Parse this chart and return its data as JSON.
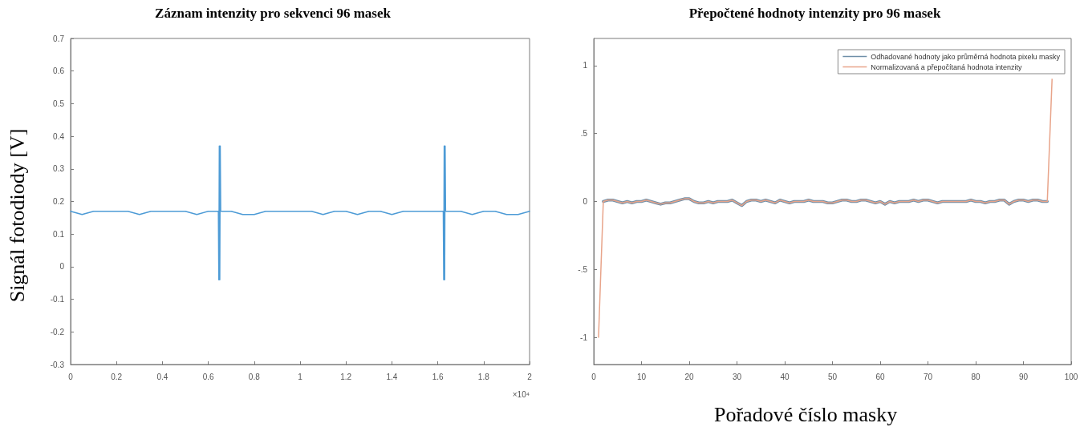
{
  "chart_data": [
    {
      "type": "line",
      "title": "Záznam intenzity pro sekvenci 96 masek",
      "ylabel": "Signál fotodiody [V]",
      "annotations": [
        "×10⁴"
      ],
      "xlim": [
        0,
        2
      ],
      "xticks": [
        0,
        0.2,
        0.4,
        0.6,
        0.8,
        1,
        1.2,
        1.4,
        1.6,
        1.8,
        2
      ],
      "ylim": [
        -0.3,
        0.7
      ],
      "yticks": [
        -0.3,
        -0.2,
        -0.1,
        0,
        0.1,
        0.2,
        0.3,
        0.4,
        0.5,
        0.6,
        0.7
      ],
      "grid": false,
      "legend": false,
      "marker": "none",
      "line_style": "solid",
      "series": [
        {
          "color": "#4d9bd6",
          "x": [
            0,
            0.05,
            0.1,
            0.15,
            0.2,
            0.25,
            0.3,
            0.35,
            0.4,
            0.45,
            0.5,
            0.55,
            0.6,
            0.644,
            0.646,
            0.648,
            0.65,
            0.652,
            0.654,
            0.7,
            0.75,
            0.8,
            0.85,
            0.9,
            0.95,
            1,
            1.05,
            1.1,
            1.15,
            1.2,
            1.25,
            1.3,
            1.35,
            1.4,
            1.45,
            1.5,
            1.55,
            1.6,
            1.624,
            1.626,
            1.628,
            1.63,
            1.632,
            1.634,
            1.68,
            1.7,
            1.75,
            1.8,
            1.85,
            1.9,
            1.95,
            2
          ],
          "values": [
            0.17,
            0.16,
            0.17,
            0.17,
            0.17,
            0.17,
            0.16,
            0.17,
            0.17,
            0.17,
            0.17,
            0.16,
            0.17,
            0.17,
            -0.04,
            0.37,
            -0.04,
            0.37,
            0.17,
            0.17,
            0.16,
            0.16,
            0.17,
            0.17,
            0.17,
            0.17,
            0.17,
            0.16,
            0.17,
            0.17,
            0.16,
            0.17,
            0.17,
            0.16,
            0.17,
            0.17,
            0.17,
            0.17,
            0.17,
            -0.04,
            0.37,
            -0.04,
            0.37,
            0.17,
            0.17,
            0.17,
            0.16,
            0.17,
            0.17,
            0.16,
            0.16,
            0.17
          ]
        }
      ]
    },
    {
      "type": "line",
      "title": "Přepočtené hodnoty intenzity pro 96 masek",
      "xlabel": "Pořadové číslo masky",
      "xlim": [
        0,
        100
      ],
      "xticks": [
        0,
        10,
        20,
        30,
        40,
        50,
        60,
        70,
        80,
        90,
        100
      ],
      "ylim": [
        -1.2,
        1.2
      ],
      "yticks": [
        {
          "value": -1,
          "label": "-1"
        },
        {
          "value": -0.5,
          "label": "-.5"
        },
        {
          "value": 0,
          "label": "0"
        },
        {
          "value": 0.5,
          "label": ".5"
        },
        {
          "value": 1,
          "label": "1"
        }
      ],
      "grid": false,
      "legend": "top right",
      "marker": "none",
      "line_style": "solid",
      "x": [
        1,
        2,
        3,
        4,
        5,
        6,
        7,
        8,
        9,
        10,
        11,
        12,
        13,
        14,
        15,
        16,
        17,
        18,
        19,
        20,
        21,
        22,
        23,
        24,
        25,
        26,
        27,
        28,
        29,
        30,
        31,
        32,
        33,
        34,
        35,
        36,
        37,
        38,
        39,
        40,
        41,
        42,
        43,
        44,
        45,
        46,
        47,
        48,
        49,
        50,
        51,
        52,
        53,
        54,
        55,
        56,
        57,
        58,
        59,
        60,
        61,
        62,
        63,
        64,
        65,
        66,
        67,
        68,
        69,
        70,
        71,
        72,
        73,
        74,
        75,
        76,
        77,
        78,
        79,
        80,
        81,
        82,
        83,
        84,
        85,
        86,
        87,
        88,
        89,
        90,
        91,
        92,
        93,
        94,
        95,
        96
      ],
      "series": [
        {
          "name": "Odhadované hodnoty jako průměrná hodnota pixelu masky",
          "color": "#6f8fa8",
          "values": [
            null,
            0,
            0.01,
            0.01,
            0,
            -0.01,
            0,
            -0.01,
            0,
            0,
            0.01,
            0,
            -0.01,
            -0.02,
            -0.01,
            -0.01,
            0,
            0.01,
            0.02,
            0.02,
            0,
            -0.01,
            -0.01,
            0,
            -0.01,
            0,
            0,
            0,
            0.01,
            -0.01,
            -0.03,
            0,
            0.01,
            0.01,
            0,
            0.01,
            0,
            -0.01,
            0.01,
            0,
            -0.01,
            0,
            0,
            0,
            0.01,
            0,
            0,
            0,
            -0.01,
            -0.01,
            0,
            0.01,
            0.01,
            0,
            0,
            0.01,
            0.01,
            0,
            -0.01,
            0,
            -0.02,
            0,
            -0.01,
            0,
            0,
            0,
            0.01,
            0,
            0.01,
            0.01,
            0,
            -0.01,
            0,
            0,
            0,
            0,
            0,
            0,
            0.01,
            0,
            0,
            -0.01,
            0,
            0,
            0.01,
            0.01,
            -0.02,
            0,
            0.01,
            0.01,
            0,
            0.01,
            0.01,
            0,
            0,
            null
          ]
        },
        {
          "name": "Normalizovaná a přepočítaná hodnota intenzity",
          "color": "#e8a48a",
          "values": [
            -1,
            0,
            0.01,
            0.01,
            0,
            -0.01,
            0,
            -0.01,
            0,
            0,
            0.01,
            0,
            -0.01,
            -0.02,
            -0.01,
            -0.01,
            0,
            0.01,
            0.02,
            0.02,
            0,
            -0.01,
            -0.01,
            0,
            -0.01,
            0,
            0,
            0,
            0.01,
            -0.01,
            -0.03,
            0,
            0.01,
            0.01,
            0,
            0.01,
            0,
            -0.01,
            0.01,
            0,
            -0.01,
            0,
            0,
            0,
            0.01,
            0,
            0,
            0,
            -0.01,
            -0.01,
            0,
            0.01,
            0.01,
            0,
            0,
            0.01,
            0.01,
            0,
            -0.01,
            0,
            -0.02,
            0,
            -0.01,
            0,
            0,
            0,
            0.01,
            0,
            0.01,
            0.01,
            0,
            -0.01,
            0,
            0,
            0,
            0,
            0,
            0,
            0.01,
            0,
            0,
            -0.01,
            0,
            0,
            0.01,
            0.01,
            -0.02,
            0,
            0.01,
            0.01,
            0,
            0.01,
            0.01,
            0,
            0,
            0.9
          ]
        }
      ]
    }
  ]
}
